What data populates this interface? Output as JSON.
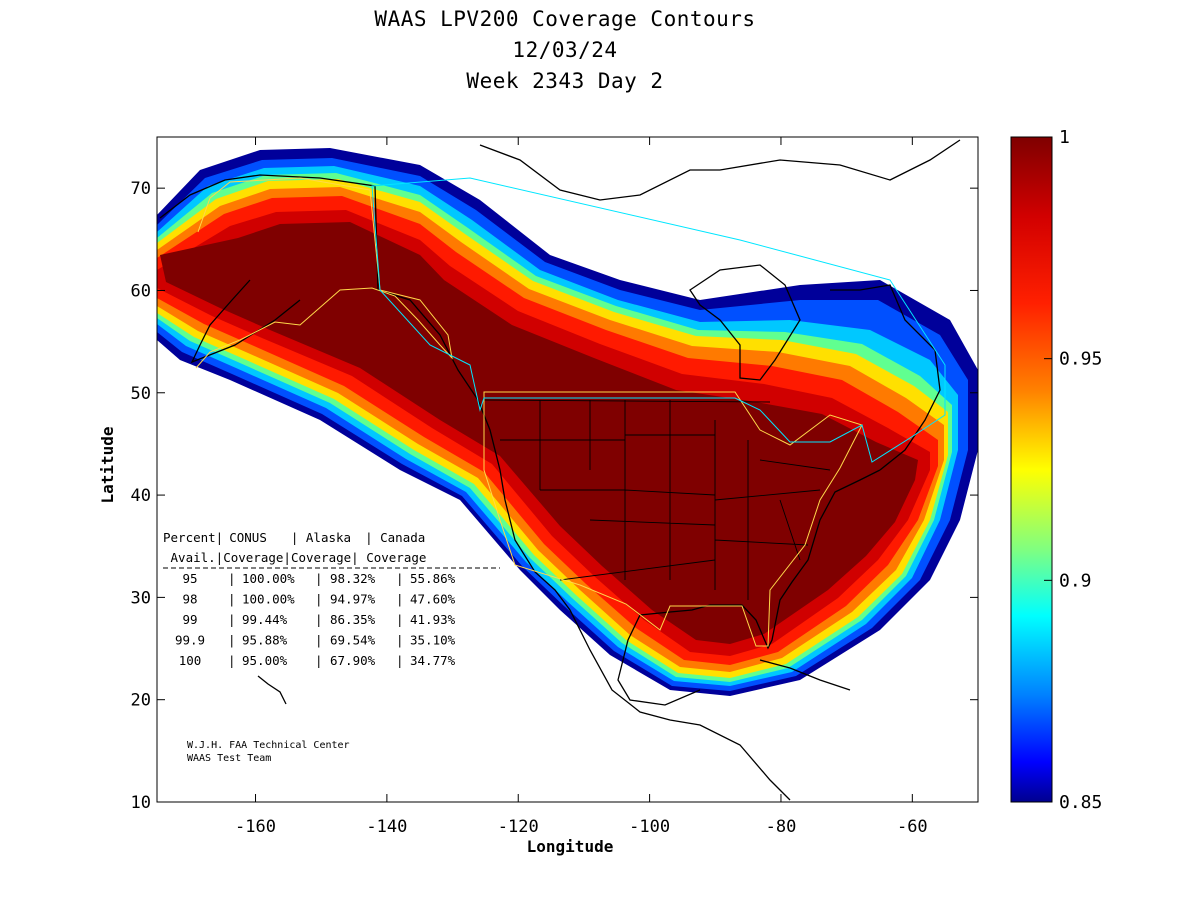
{
  "title": {
    "line1": "WAAS LPV200 Coverage Contours",
    "line2": "12/03/24",
    "line3": "Week 2343 Day 2"
  },
  "axes": {
    "xlabel": "Longitude",
    "ylabel": "Latitude",
    "xlim": [
      -175,
      -50
    ],
    "ylim": [
      10,
      75
    ],
    "xticks": [
      -160,
      -140,
      -120,
      -100,
      -80,
      -60
    ],
    "yticks": [
      10,
      20,
      30,
      40,
      50,
      60,
      70
    ]
  },
  "colorbar": {
    "min": 0.85,
    "max": 1,
    "ticks": [
      "1",
      "0.95",
      "0.9",
      "0.85"
    ],
    "colors": [
      "#7f0000",
      "#ff0000",
      "#ff8000",
      "#ffff00",
      "#80ff80",
      "#00ffff",
      "#0080ff",
      "#0000ff",
      "#00008f"
    ]
  },
  "table": {
    "header1": [
      "Percent|",
      "CONUS",
      "| Alaska",
      "| Canada"
    ],
    "header2": [
      " Avail.|Coverage",
      "|Coverage",
      "| Coverage"
    ],
    "rows": [
      {
        "pct": "95",
        "conus": "100.00%",
        "alaska": "98.32%",
        "canada": "55.86%"
      },
      {
        "pct": "98",
        "conus": "100.00%",
        "alaska": "94.97%",
        "canada": "47.60%"
      },
      {
        "pct": "99",
        "conus": "99.44%",
        "alaska": "86.35%",
        "canada": "41.93%"
      },
      {
        "pct": "99.9",
        "conus": "95.88%",
        "alaska": "69.54%",
        "canada": "35.10%"
      },
      {
        "pct": "100",
        "conus": "95.00%",
        "alaska": "67.90%",
        "canada": "34.77%"
      }
    ]
  },
  "credits": {
    "line1": "W.J.H. FAA Technical Center",
    "line2": "WAAS Test Team"
  }
}
